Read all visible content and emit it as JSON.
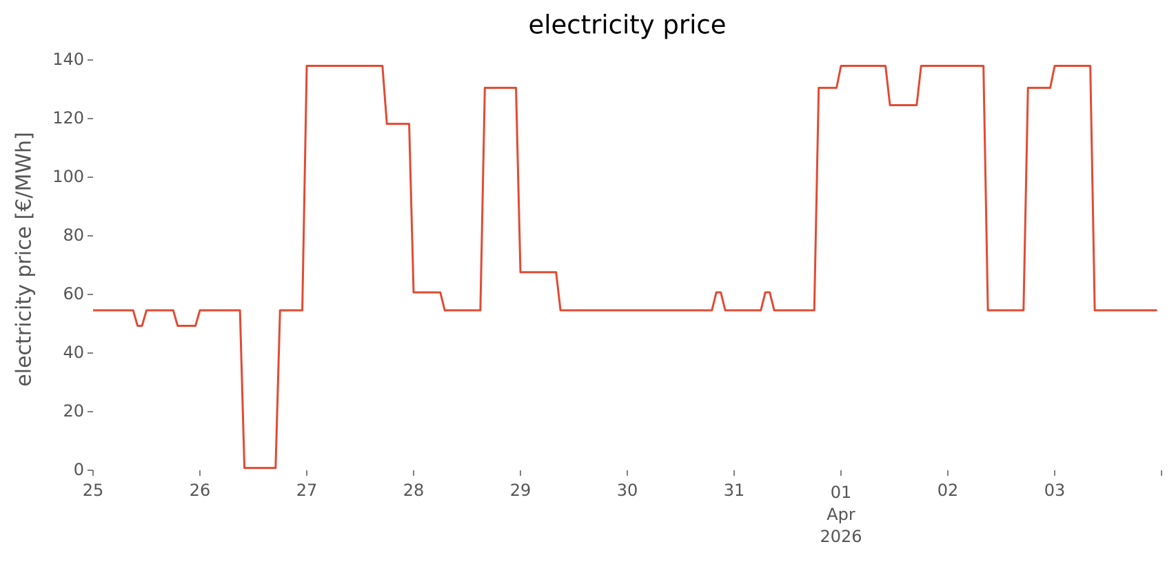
{
  "chart_data": {
    "type": "line",
    "title": "electricity price",
    "ylabel": "electricity price [€/MWh]",
    "x": [
      "2026-03-25T00:00",
      "2026-03-25T09:00",
      "2026-03-25T10:00",
      "2026-03-25T11:00",
      "2026-03-25T12:00",
      "2026-03-25T18:00",
      "2026-03-25T19:00",
      "2026-03-25T23:00",
      "2026-03-26T00:00",
      "2026-03-26T09:00",
      "2026-03-26T10:00",
      "2026-03-26T17:00",
      "2026-03-26T18:00",
      "2026-03-26T23:00",
      "2026-03-27T00:00",
      "2026-03-27T17:00",
      "2026-03-27T18:00",
      "2026-03-27T23:00",
      "2026-03-28T00:00",
      "2026-03-28T06:00",
      "2026-03-28T07:00",
      "2026-03-28T15:00",
      "2026-03-28T16:00",
      "2026-03-28T23:00",
      "2026-03-29T00:00",
      "2026-03-29T08:00",
      "2026-03-29T09:00",
      "2026-03-30T19:00",
      "2026-03-30T20:00",
      "2026-03-30T21:00",
      "2026-03-30T22:00",
      "2026-03-31T06:00",
      "2026-03-31T07:00",
      "2026-03-31T08:00",
      "2026-03-31T09:00",
      "2026-03-31T18:00",
      "2026-03-31T19:00",
      "2026-03-31T23:00",
      "2026-04-01T00:00",
      "2026-04-01T10:00",
      "2026-04-01T11:00",
      "2026-04-01T17:00",
      "2026-04-01T18:00",
      "2026-04-02T08:00",
      "2026-04-02T09:00",
      "2026-04-02T17:00",
      "2026-04-02T18:00",
      "2026-04-02T23:00",
      "2026-04-03T00:00",
      "2026-04-03T08:00",
      "2026-04-03T09:00",
      "2026-04-03T23:00"
    ],
    "series": [
      {
        "name": "electricity price",
        "color": "#e24a33",
        "values": [
          54.6,
          54.6,
          49.3,
          49.3,
          54.6,
          54.6,
          49.3,
          49.3,
          54.6,
          54.6,
          0.8,
          0.8,
          54.6,
          54.6,
          138,
          138,
          118.2,
          118.2,
          60.7,
          60.7,
          54.6,
          54.6,
          130.5,
          130.5,
          67.6,
          67.6,
          54.6,
          54.6,
          60.7,
          60.7,
          54.6,
          54.6,
          60.7,
          60.7,
          54.6,
          54.6,
          130.5,
          130.5,
          138,
          138,
          124.6,
          124.6,
          138,
          138,
          54.6,
          54.6,
          130.5,
          130.5,
          138,
          138,
          54.6,
          54.6
        ]
      }
    ],
    "xlim": [
      "2026-03-25T00:00",
      "2026-04-04T00:00"
    ],
    "xticks": [
      {
        "value": "2026-03-25T00:00",
        "label": "25"
      },
      {
        "value": "2026-03-26T00:00",
        "label": "26"
      },
      {
        "value": "2026-03-27T00:00",
        "label": "27"
      },
      {
        "value": "2026-03-28T00:00",
        "label": "28"
      },
      {
        "value": "2026-03-29T00:00",
        "label": "29"
      },
      {
        "value": "2026-03-30T00:00",
        "label": "30"
      },
      {
        "value": "2026-03-31T00:00",
        "label": "31"
      },
      {
        "value": "2026-04-01T00:00",
        "label": [
          "01",
          "Apr",
          "2026"
        ]
      },
      {
        "value": "2026-04-02T00:00",
        "label": "02"
      },
      {
        "value": "2026-04-03T00:00",
        "label": "03"
      },
      {
        "value": "2026-04-04T00:00",
        "label": null
      }
    ],
    "ylim": [
      0,
      140
    ],
    "yticks": [
      0,
      20,
      40,
      60,
      80,
      100,
      120,
      140
    ],
    "grid": false
  }
}
